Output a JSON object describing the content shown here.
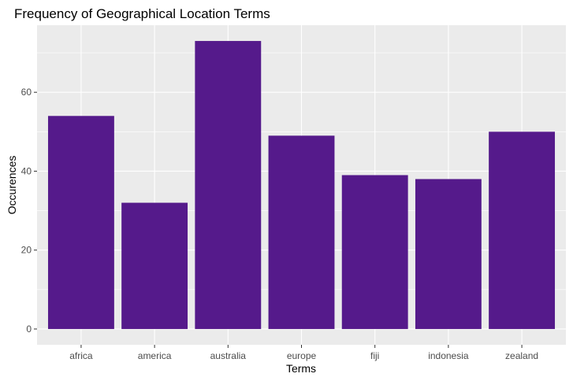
{
  "chart_data": {
    "type": "bar",
    "title": "Frequency of Geographical Location Terms",
    "xlabel": "Terms",
    "ylabel": "Occurences",
    "categories": [
      "africa",
      "america",
      "australia",
      "europe",
      "fiji",
      "indonesia",
      "zealand"
    ],
    "values": [
      54,
      32,
      73,
      49,
      39,
      38,
      50
    ],
    "ylim": [
      -4,
      77
    ],
    "yticks": [
      0,
      20,
      40,
      60
    ],
    "grid": true,
    "bar_color": "#551a8b",
    "panel_color": "#ebebeb",
    "grid_color": "#ffffff"
  }
}
